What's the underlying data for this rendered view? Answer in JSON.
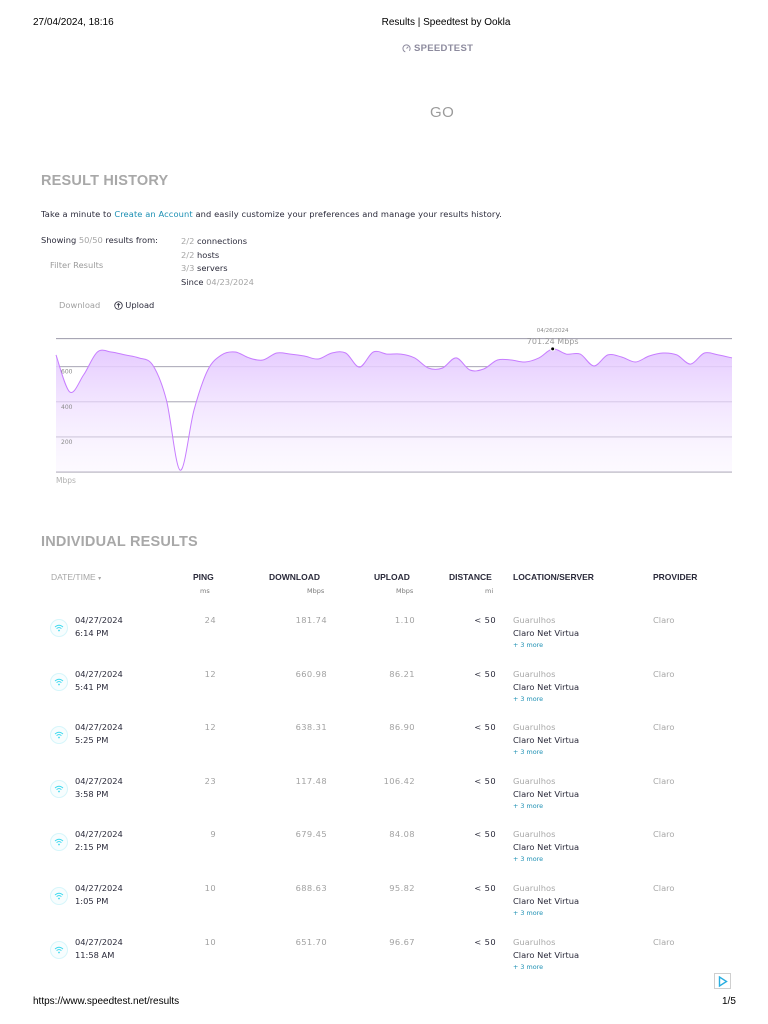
{
  "print_header": {
    "datetime": "27/04/2024, 18:16",
    "page_title": "Results | Speedtest by Ookla"
  },
  "logo": {
    "text": "SPEEDTEST"
  },
  "go_button": {
    "label": "GO"
  },
  "result_history": {
    "title": "RESULT HISTORY",
    "intro_before": "Take a minute to ",
    "intro_link": "Create an Account",
    "intro_after": " and easily customize your preferences and manage your results history.",
    "showing_label": "Showing ",
    "showing_count": "50/50",
    "showing_suffix": " results from:",
    "filter_results_label": "Filter Results",
    "filters": [
      {
        "count": "2/2",
        "label": " connections"
      },
      {
        "count": "2/2",
        "label": " hosts"
      },
      {
        "count": "3/3",
        "label": " servers"
      },
      {
        "prefix": "Since ",
        "value": "04/23/2024"
      }
    ],
    "toggle_download": "Download",
    "toggle_upload": "Upload"
  },
  "chart_data": {
    "type": "area",
    "title": "",
    "xlabel": "",
    "ylabel": "Mbps",
    "ylim": [
      0,
      760
    ],
    "yticks": [
      200,
      400,
      600
    ],
    "grid": true,
    "series": [
      {
        "name": "Download",
        "color": "#c77dff",
        "values": [
          667,
          456,
          553,
          684,
          684,
          667,
          650,
          610,
          410,
          10,
          353,
          581,
          667,
          684,
          650,
          638,
          678,
          672,
          661,
          644,
          678,
          678,
          598,
          684,
          672,
          672,
          650,
          592,
          592,
          650,
          581,
          587,
          638,
          638,
          627,
          650,
          701.24,
          672,
          672,
          604,
          667,
          655,
          627,
          661,
          678,
          667,
          615,
          678,
          667,
          650
        ]
      }
    ],
    "tooltip": {
      "date": "04/26/2024",
      "value": "701.24 Mbps",
      "index": 36
    },
    "unit_label": "Mbps"
  },
  "individual_results": {
    "title": "INDIVIDUAL RESULTS",
    "columns": {
      "date_time": "DATE/TIME",
      "ping": "PING",
      "ping_unit": "ms",
      "download": "DOWNLOAD",
      "download_unit": "Mbps",
      "upload": "UPLOAD",
      "upload_unit": "Mbps",
      "distance": "DISTANCE",
      "distance_unit": "mi",
      "location": "LOCATION/SERVER",
      "provider": "PROVIDER"
    },
    "rows": [
      {
        "date": "04/27/2024",
        "time": "6:14 PM",
        "ping": "24",
        "download": "181.74",
        "upload": "1.10",
        "distance": "< 50",
        "location": "Guarulhos",
        "server": "Claro Net Virtua",
        "more": "+ 3 more",
        "provider": "Claro"
      },
      {
        "date": "04/27/2024",
        "time": "5:41 PM",
        "ping": "12",
        "download": "660.98",
        "upload": "86.21",
        "distance": "< 50",
        "location": "Guarulhos",
        "server": "Claro Net Virtua",
        "more": "+ 3 more",
        "provider": "Claro"
      },
      {
        "date": "04/27/2024",
        "time": "5:25 PM",
        "ping": "12",
        "download": "638.31",
        "upload": "86.90",
        "distance": "< 50",
        "location": "Guarulhos",
        "server": "Claro Net Virtua",
        "more": "+ 3 more",
        "provider": "Claro"
      },
      {
        "date": "04/27/2024",
        "time": "3:58 PM",
        "ping": "23",
        "download": "117.48",
        "upload": "106.42",
        "distance": "< 50",
        "location": "Guarulhos",
        "server": "Claro Net Virtua",
        "more": "+ 3 more",
        "provider": "Claro"
      },
      {
        "date": "04/27/2024",
        "time": "2:15 PM",
        "ping": "9",
        "download": "679.45",
        "upload": "84.08",
        "distance": "< 50",
        "location": "Guarulhos",
        "server": "Claro Net Virtua",
        "more": "+ 3 more",
        "provider": "Claro"
      },
      {
        "date": "04/27/2024",
        "time": "1:05 PM",
        "ping": "10",
        "download": "688.63",
        "upload": "95.82",
        "distance": "< 50",
        "location": "Guarulhos",
        "server": "Claro Net Virtua",
        "more": "+ 3 more",
        "provider": "Claro"
      },
      {
        "date": "04/27/2024",
        "time": "11:58 AM",
        "ping": "10",
        "download": "651.70",
        "upload": "96.67",
        "distance": "< 50",
        "location": "Guarulhos",
        "server": "Claro Net Virtua",
        "more": "+ 3 more",
        "provider": "Claro"
      }
    ]
  },
  "print_footer": {
    "url": "https://www.speedtest.net/results",
    "page": "1/5"
  },
  "colors": {
    "accent_link": "#1b8fb3",
    "chart_line": "#c77dff",
    "wifi_icon": "#3fd9ee"
  }
}
